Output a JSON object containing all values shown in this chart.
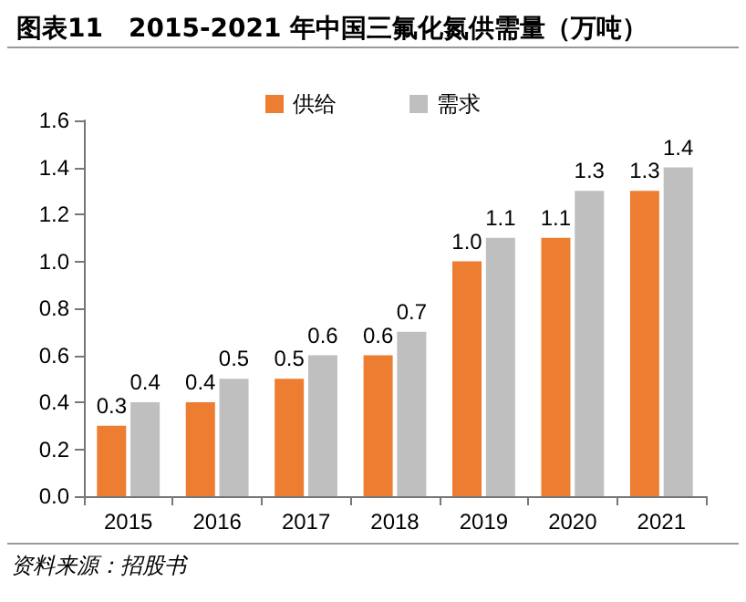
{
  "chart_data": {
    "type": "bar",
    "title": "图表11　2015-2021 年中国三氟化氮供需量（万吨）",
    "categories": [
      "2015",
      "2016",
      "2017",
      "2018",
      "2019",
      "2020",
      "2021"
    ],
    "series": [
      {
        "name": "供给",
        "color": "#ed7d31",
        "values": [
          0.3,
          0.4,
          0.5,
          0.6,
          1.0,
          1.1,
          1.3
        ],
        "value_labels": [
          "0.3",
          "0.4",
          "0.5",
          "0.6",
          "1.0",
          "1.1",
          "1.3"
        ]
      },
      {
        "name": "需求",
        "color": "#bfbfbf",
        "values": [
          0.4,
          0.5,
          0.6,
          0.7,
          1.1,
          1.3,
          1.4
        ],
        "value_labels": [
          "0.4",
          "0.5",
          "0.6",
          "0.7",
          "1.1",
          "1.3",
          "1.4"
        ]
      }
    ],
    "ylim": [
      0,
      1.6
    ],
    "yticks": [
      {
        "value": 0,
        "label": "0.0"
      },
      0.2,
      0.4,
      0.6,
      0.8,
      {
        "value": 1,
        "label": "1.0"
      },
      1.2,
      1.4,
      1.6
    ],
    "grid": false,
    "legend": "top",
    "annotations": [
      "资料来源：招股书"
    ]
  }
}
